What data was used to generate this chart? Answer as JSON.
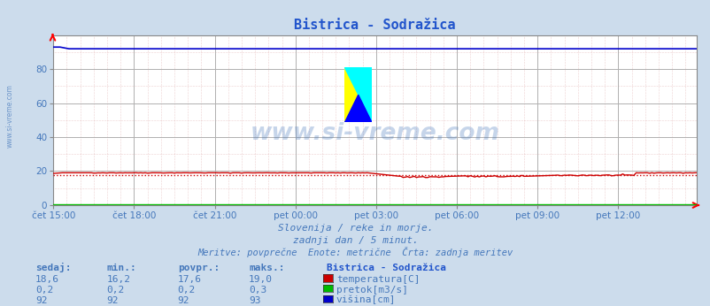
{
  "title": "Bistrica - Sodražica",
  "bg_color": "#ccdcec",
  "plot_bg_color": "#ffffff",
  "grid_major_color": "#b0b0b0",
  "grid_minor_color_h": "#e8c8c8",
  "grid_minor_color_v": "#d8c8c8",
  "x_labels": [
    "čet 15:00",
    "čet 18:00",
    "čet 21:00",
    "pet 00:00",
    "pet 03:00",
    "pet 06:00",
    "pet 09:00",
    "pet 12:00"
  ],
  "x_ticks_idx": [
    0,
    36,
    72,
    108,
    144,
    180,
    216,
    252
  ],
  "n_points": 288,
  "ylim": [
    0,
    100
  ],
  "yticks": [
    0,
    20,
    40,
    60,
    80
  ],
  "temp_avg": 17.6,
  "subtitle1": "Slovenija / reke in morje.",
  "subtitle2": "zadnji dan / 5 minut.",
  "subtitle3": "Meritve: povprečne  Enote: metrične  Črta: zadnja meritev",
  "table_headers": [
    "sedaj:",
    "min.:",
    "povpr.:",
    "maks.:"
  ],
  "table_data": [
    [
      "18,6",
      "16,2",
      "17,6",
      "19,0"
    ],
    [
      "0,2",
      "0,2",
      "0,2",
      "0,3"
    ],
    [
      "92",
      "92",
      "92",
      "93"
    ]
  ],
  "legend_labels": [
    "temperatura[C]",
    "pretok[m3/s]",
    "višina[cm]"
  ],
  "legend_colors": [
    "#cc0000",
    "#00bb00",
    "#0000cc"
  ],
  "text_color": "#4477bb",
  "title_color": "#2255cc",
  "watermark": "www.si-vreme.com",
  "watermark_color": "#4477bb",
  "left_label": "www.si-vreme.com"
}
